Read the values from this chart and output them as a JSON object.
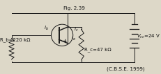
{
  "bg_color": "#ddd8c8",
  "title_text": "(C.B.S.E. 1999)",
  "fig_label": "Fig. 2.39",
  "Rb_label": "R_b=220 kΩ",
  "Rc_label": "R_c=47 kΩ",
  "Vcc_label": "V_{cc}=24 V",
  "Ib_label": "I_b",
  "Ic_label": "I_c",
  "Ie_label": "I_e",
  "line_color": "#1a1a1a",
  "text_color": "#111111",
  "lw": 0.7
}
